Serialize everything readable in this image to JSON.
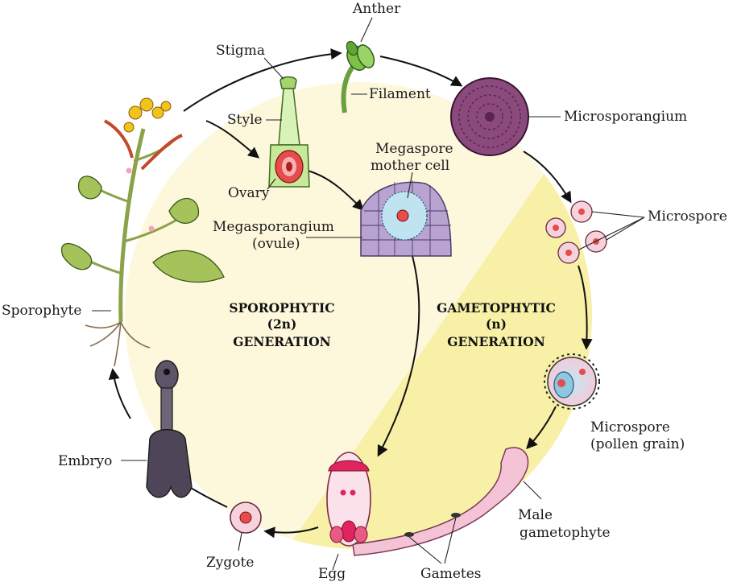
{
  "labels": {
    "anther": "Anther",
    "stigma": "Stigma",
    "filament": "Filament",
    "microsporangium": "Microsporangium",
    "style": "Style",
    "megaspore_line1": "Megaspore",
    "megaspore_line2": "mother cell",
    "ovary": "Ovary",
    "microspore": "Microspore",
    "megasporangium_line1": "Megasporangium",
    "megasporangium_line2": "(ovule)",
    "sporophyte": "Sporophyte",
    "pollen_line1": "Microspore",
    "pollen_line2": "(pollen grain)",
    "embryo": "Embryo",
    "male_line1": "Male",
    "male_line2": "gametophyte",
    "zygote": "Zygote",
    "egg": "Egg",
    "gametes": "Gametes"
  },
  "generations": {
    "sporophytic": {
      "line1": "SPOROPHYTIC",
      "line2": "(2n)",
      "line3": "GENERATION"
    },
    "gametophytic": {
      "line1": "GAMETOPHYTIC",
      "line2": "(n)",
      "line3": "GENERATION"
    }
  },
  "colors": {
    "sporophytic_bg": "#fdf8dc",
    "gametophytic_bg": "#f7f0a6",
    "microsporangium": "#8a4a7c",
    "megasporangium": "#b9a3d0",
    "pink": "#f4b9cf",
    "magenta": "#e0245e",
    "stem": "#8aa24a",
    "leaf": "#a6c25a",
    "flower": "#f2c318"
  }
}
